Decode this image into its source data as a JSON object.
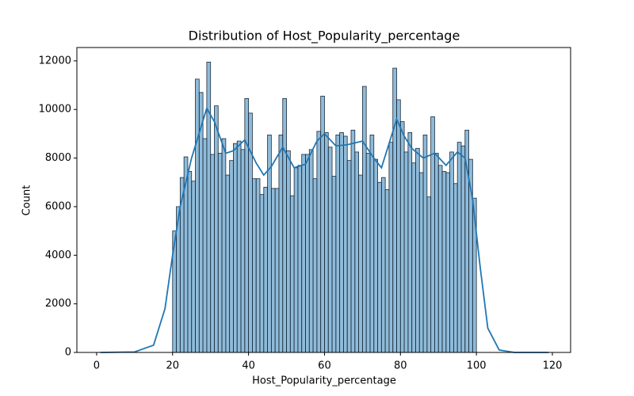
{
  "chart_data": {
    "type": "histogram",
    "title": "Distribution of Host_Popularity_percentage",
    "x_label": "Host_Popularity_percentage",
    "y_label": "Count",
    "color": "#1f77b4",
    "bins": [
      20,
      21,
      22,
      23,
      24,
      25,
      26,
      27,
      28,
      29,
      30,
      31,
      32,
      33,
      34,
      35,
      36,
      37,
      38,
      39,
      40,
      41,
      42,
      43,
      44,
      45,
      46,
      47,
      48,
      49,
      50,
      51,
      52,
      53,
      54,
      55,
      56,
      57,
      58,
      59,
      60,
      61,
      62,
      63,
      64,
      65,
      66,
      67,
      68,
      69,
      70,
      71,
      72,
      73,
      74,
      75,
      76,
      77,
      78,
      79,
      80,
      81,
      82,
      83,
      84,
      85,
      86,
      87,
      88,
      89,
      90,
      91,
      92,
      93,
      94,
      95,
      96,
      97,
      98,
      99,
      100
    ],
    "values": [
      5000,
      6000,
      7200,
      8050,
      7450,
      7050,
      11250,
      10700,
      8800,
      11950,
      8150,
      10150,
      8200,
      8800,
      7300,
      7900,
      8600,
      8700,
      8350,
      10450,
      9850,
      7150,
      7150,
      6500,
      6800,
      8950,
      6750,
      6750,
      8950,
      10450,
      8300,
      6450,
      7600,
      7700,
      8150,
      8150,
      8350,
      7150,
      9100,
      10550,
      9050,
      8450,
      7250,
      8950,
      9050,
      8900,
      7900,
      9150,
      8250,
      7300,
      10950,
      8200,
      8950,
      7950,
      7000,
      7200,
      6700,
      8650,
      11700,
      10400,
      9500,
      8250,
      9050,
      7800,
      8400,
      7400,
      8950,
      6400,
      9700,
      8200,
      7700,
      7450,
      7400,
      8250,
      6950,
      8650,
      8500,
      9150,
      7950,
      6350
    ],
    "kde": {
      "x": [
        1,
        10,
        15,
        18,
        20,
        22,
        25,
        29,
        31,
        34,
        36,
        39,
        42,
        44,
        46,
        49,
        52,
        55,
        58,
        60,
        63,
        66,
        70,
        73,
        75,
        79,
        81,
        83,
        86,
        89,
        92,
        95,
        97,
        99,
        101,
        103,
        106,
        110,
        119
      ],
      "values": [
        0,
        20,
        300,
        1800,
        4000,
        6000,
        8000,
        10050,
        9500,
        8200,
        8300,
        8750,
        7800,
        7300,
        7650,
        8450,
        7600,
        7750,
        8700,
        9000,
        8500,
        8550,
        8700,
        8000,
        7600,
        9600,
        8900,
        8400,
        8000,
        8200,
        7700,
        8250,
        8000,
        6300,
        3500,
        1000,
        100,
        0,
        0
      ]
    },
    "xlim": [
      -5.2,
      124.8
    ],
    "ylim": [
      0,
      12550
    ],
    "xticks": [
      0,
      20,
      40,
      60,
      80,
      100,
      120
    ],
    "yticks": [
      0,
      2000,
      4000,
      6000,
      8000,
      10000,
      12000
    ]
  }
}
